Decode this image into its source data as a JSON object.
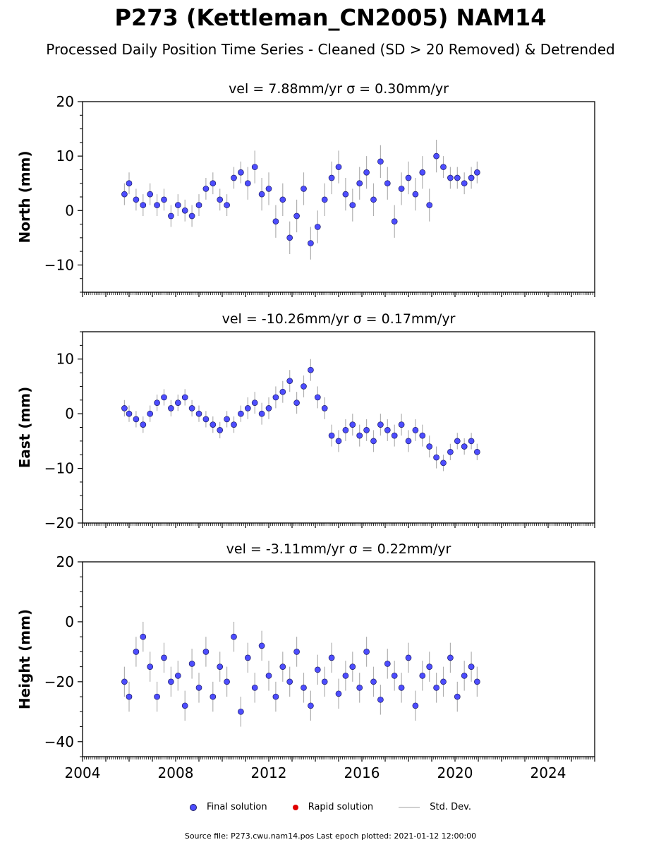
{
  "title": "P273 (Kettleman_CN2005) NAM14",
  "subtitle": "Processed Daily Position Time Series - Cleaned (SD > 20 Removed) & Detrended",
  "legend": {
    "final": "Final solution",
    "rapid": "Rapid solution",
    "std": "Std. Dev."
  },
  "source_note": "Source file: P273.cwu.nam14.pos  Last epoch plotted: 2021-01-12 12:00:00",
  "colors": {
    "final": "#4d4dff",
    "final_edge": "#1a1a66",
    "rapid": "#e00000",
    "std": "#b0b0b0"
  },
  "chart_data": [
    {
      "type": "scatter",
      "title": "vel = 7.88mm/yr   σ = 0.30mm/yr",
      "ylabel": "North (mm)",
      "xlim": [
        2004,
        2026
      ],
      "ylim": [
        -15,
        20
      ],
      "yticks": [
        -10,
        0,
        10,
        20
      ],
      "ytick_labels": [
        "−10",
        "0",
        "10",
        "20"
      ],
      "x": [
        2005.8,
        2006.0,
        2006.3,
        2006.6,
        2006.9,
        2007.2,
        2007.5,
        2007.8,
        2008.1,
        2008.4,
        2008.7,
        2009.0,
        2009.3,
        2009.6,
        2009.9,
        2010.2,
        2010.5,
        2010.8,
        2011.1,
        2011.4,
        2011.7,
        2012.0,
        2012.3,
        2012.6,
        2012.9,
        2013.2,
        2013.5,
        2013.8,
        2014.1,
        2014.4,
        2014.7,
        2015.0,
        2015.3,
        2015.6,
        2015.9,
        2016.2,
        2016.5,
        2016.8,
        2017.1,
        2017.4,
        2017.7,
        2018.0,
        2018.3,
        2018.6,
        2018.9,
        2019.2,
        2019.5,
        2019.8,
        2020.1,
        2020.4,
        2020.7,
        2020.95
      ],
      "values": [
        3,
        5,
        2,
        1,
        3,
        1,
        2,
        -1,
        1,
        0,
        -1,
        1,
        4,
        5,
        2,
        1,
        6,
        7,
        5,
        8,
        3,
        4,
        -2,
        2,
        -5,
        -1,
        4,
        -6,
        -3,
        2,
        6,
        8,
        3,
        1,
        5,
        7,
        2,
        9,
        5,
        -2,
        4,
        6,
        3,
        7,
        1,
        10,
        8,
        6,
        6,
        5,
        6,
        7
      ],
      "error": [
        2,
        2,
        2,
        2,
        2,
        2,
        2,
        2,
        2,
        2,
        2,
        2,
        2,
        2,
        2,
        2,
        2,
        2,
        3,
        3,
        3,
        3,
        3,
        3,
        3,
        3,
        3,
        3,
        3,
        3,
        3,
        3,
        3,
        3,
        3,
        3,
        3,
        3,
        3,
        3,
        3,
        3,
        3,
        3,
        3,
        3,
        2,
        2,
        2,
        2,
        2,
        2
      ]
    },
    {
      "type": "scatter",
      "title": "vel = -10.26mm/yr   σ = 0.17mm/yr",
      "ylabel": "East (mm)",
      "xlim": [
        2004,
        2026
      ],
      "ylim": [
        -20,
        15
      ],
      "yticks": [
        -20,
        -10,
        0,
        10
      ],
      "ytick_labels": [
        "−20",
        "−10",
        "0",
        "10"
      ],
      "x": [
        2005.8,
        2006.0,
        2006.3,
        2006.6,
        2006.9,
        2007.2,
        2007.5,
        2007.8,
        2008.1,
        2008.4,
        2008.7,
        2009.0,
        2009.3,
        2009.6,
        2009.9,
        2010.2,
        2010.5,
        2010.8,
        2011.1,
        2011.4,
        2011.7,
        2012.0,
        2012.3,
        2012.6,
        2012.9,
        2013.2,
        2013.5,
        2013.8,
        2014.1,
        2014.4,
        2014.7,
        2015.0,
        2015.3,
        2015.6,
        2015.9,
        2016.2,
        2016.5,
        2016.8,
        2017.1,
        2017.4,
        2017.7,
        2018.0,
        2018.3,
        2018.6,
        2018.9,
        2019.2,
        2019.5,
        2019.8,
        2020.1,
        2020.4,
        2020.7,
        2020.95
      ],
      "values": [
        1,
        0,
        -1,
        -2,
        0,
        2,
        3,
        1,
        2,
        3,
        1,
        0,
        -1,
        -2,
        -3,
        -1,
        -2,
        0,
        1,
        2,
        0,
        1,
        3,
        4,
        6,
        2,
        5,
        8,
        3,
        1,
        -4,
        -5,
        -3,
        -2,
        -4,
        -3,
        -5,
        -2,
        -3,
        -4,
        -2,
        -5,
        -3,
        -4,
        -6,
        -8,
        -9,
        -7,
        -5,
        -6,
        -5,
        -7
      ],
      "error": [
        1.5,
        1.5,
        1.5,
        1.5,
        1.5,
        1.5,
        1.5,
        1.5,
        1.5,
        1.5,
        1.5,
        1.5,
        1.5,
        1.5,
        1.5,
        1.5,
        1.5,
        1.5,
        2,
        2,
        2,
        2,
        2,
        2,
        2,
        2,
        2,
        2,
        2,
        2,
        2,
        2,
        2,
        2,
        2,
        2,
        2,
        2,
        2,
        2,
        2,
        2,
        2,
        2,
        2,
        2,
        1.5,
        1.5,
        1.5,
        1.5,
        1.5,
        1.5
      ]
    },
    {
      "type": "scatter",
      "title": "vel = -3.11mm/yr   σ = 0.22mm/yr",
      "ylabel": "Height (mm)",
      "xlim": [
        2004,
        2026
      ],
      "ylim": [
        -45,
        20
      ],
      "yticks": [
        -40,
        -20,
        0,
        20
      ],
      "ytick_labels": [
        "−40",
        "−20",
        "0",
        "20"
      ],
      "xticks": [
        2004,
        2008,
        2012,
        2016,
        2020,
        2024
      ],
      "xtick_labels": [
        "2004",
        "2008",
        "2012",
        "2016",
        "2020",
        "2024"
      ],
      "x": [
        2005.8,
        2006.0,
        2006.3,
        2006.6,
        2006.9,
        2007.2,
        2007.5,
        2007.8,
        2008.1,
        2008.4,
        2008.7,
        2009.0,
        2009.3,
        2009.6,
        2009.9,
        2010.2,
        2010.5,
        2010.8,
        2011.1,
        2011.4,
        2011.7,
        2012.0,
        2012.3,
        2012.6,
        2012.9,
        2013.2,
        2013.5,
        2013.8,
        2014.1,
        2014.4,
        2014.7,
        2015.0,
        2015.3,
        2015.6,
        2015.9,
        2016.2,
        2016.5,
        2016.8,
        2017.1,
        2017.4,
        2017.7,
        2018.0,
        2018.3,
        2018.6,
        2018.9,
        2019.2,
        2019.5,
        2019.8,
        2020.1,
        2020.4,
        2020.7,
        2020.95
      ],
      "values": [
        -20,
        -25,
        -10,
        -5,
        -15,
        -25,
        -12,
        -20,
        -18,
        -28,
        -14,
        -22,
        -10,
        -25,
        -15,
        -20,
        -5,
        -30,
        -12,
        -22,
        -8,
        -18,
        -25,
        -15,
        -20,
        -10,
        -22,
        -28,
        -16,
        -20,
        -12,
        -24,
        -18,
        -15,
        -22,
        -10,
        -20,
        -26,
        -14,
        -18,
        -22,
        -12,
        -28,
        -18,
        -15,
        -22,
        -20,
        -12,
        -25,
        -18,
        -15,
        -20
      ],
      "error": [
        5,
        5,
        5,
        5,
        5,
        5,
        5,
        5,
        5,
        5,
        5,
        5,
        5,
        5,
        5,
        5,
        5,
        5,
        5,
        5,
        5,
        5,
        5,
        5,
        5,
        5,
        5,
        5,
        5,
        5,
        5,
        5,
        5,
        5,
        5,
        5,
        5,
        5,
        5,
        5,
        5,
        5,
        5,
        5,
        5,
        5,
        5,
        5,
        5,
        5,
        5,
        5
      ]
    }
  ]
}
